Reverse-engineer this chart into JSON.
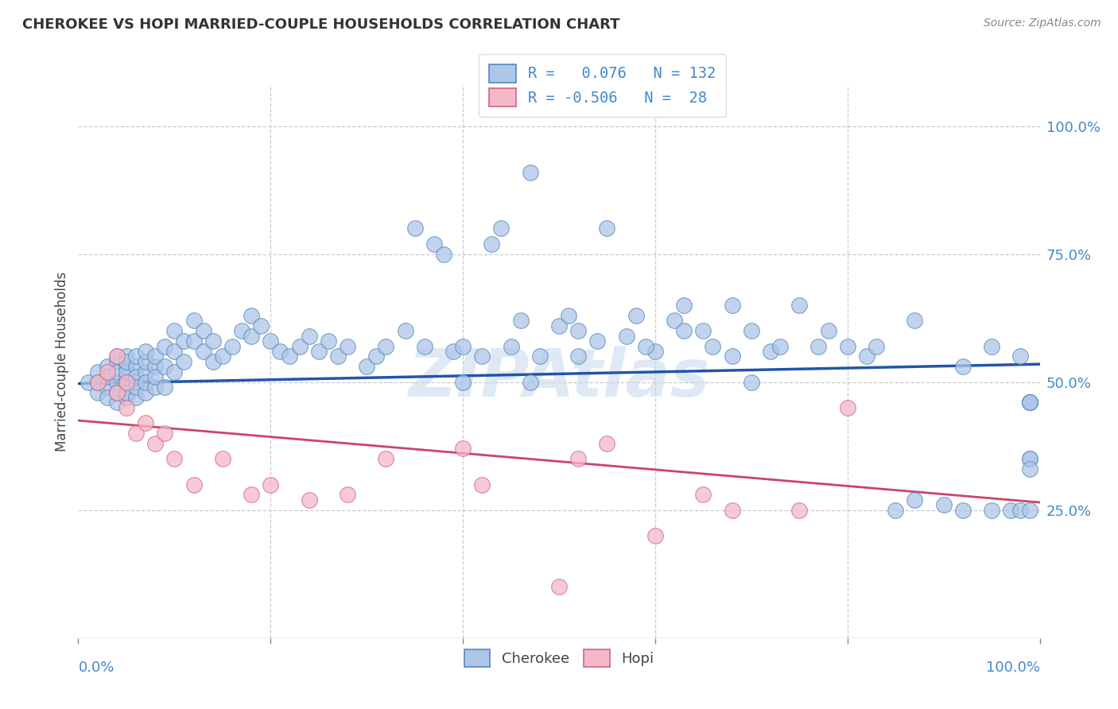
{
  "title": "CHEROKEE VS HOPI MARRIED-COUPLE HOUSEHOLDS CORRELATION CHART",
  "source": "Source: ZipAtlas.com",
  "ylabel": "Married-couple Households",
  "ytick_labels": [
    "100.0%",
    "75.0%",
    "50.0%",
    "25.0%"
  ],
  "ytick_values": [
    1.0,
    0.75,
    0.5,
    0.25
  ],
  "watermark": "ZIPAtlas",
  "legend_line1": "R =   0.076   N = 132",
  "legend_line2": "R = -0.506   N =  28",
  "cherokee_color": "#aec6e8",
  "cherokee_edge_color": "#5588bb",
  "cherokee_line_color": "#2255aa",
  "hopi_color": "#f5b8c8",
  "hopi_edge_color": "#cc6688",
  "hopi_line_color": "#cc4466",
  "legend_text_color": "#4488cc",
  "cherokee_R": 0.076,
  "hopi_R": -0.506,
  "cherokee_N": 132,
  "hopi_N": 28,
  "cherokee_x": [
    0.01,
    0.02,
    0.02,
    0.02,
    0.03,
    0.03,
    0.03,
    0.03,
    0.04,
    0.04,
    0.04,
    0.04,
    0.04,
    0.04,
    0.05,
    0.05,
    0.05,
    0.05,
    0.05,
    0.05,
    0.05,
    0.05,
    0.05,
    0.06,
    0.06,
    0.06,
    0.06,
    0.06,
    0.06,
    0.07,
    0.07,
    0.07,
    0.07,
    0.07,
    0.08,
    0.08,
    0.08,
    0.08,
    0.09,
    0.09,
    0.09,
    0.1,
    0.1,
    0.1,
    0.11,
    0.11,
    0.12,
    0.12,
    0.13,
    0.13,
    0.14,
    0.14,
    0.15,
    0.16,
    0.17,
    0.18,
    0.18,
    0.19,
    0.2,
    0.21,
    0.22,
    0.23,
    0.24,
    0.25,
    0.26,
    0.27,
    0.28,
    0.3,
    0.31,
    0.32,
    0.34,
    0.35,
    0.36,
    0.37,
    0.38,
    0.39,
    0.4,
    0.42,
    0.43,
    0.44,
    0.45,
    0.46,
    0.47,
    0.48,
    0.5,
    0.51,
    0.52,
    0.54,
    0.55,
    0.57,
    0.58,
    0.6,
    0.62,
    0.63,
    0.65,
    0.66,
    0.68,
    0.7,
    0.72,
    0.75,
    0.77,
    0.8,
    0.82,
    0.85,
    0.87,
    0.9,
    0.92,
    0.95,
    0.97,
    0.98,
    0.99,
    0.99,
    0.4,
    0.47,
    0.52,
    0.59,
    0.63,
    0.68,
    0.7,
    0.73,
    0.78,
    0.83,
    0.87,
    0.92,
    0.95,
    0.98,
    0.99,
    0.99,
    0.99,
    0.99,
    0.99,
    0.99
  ],
  "cherokee_y": [
    0.5,
    0.52,
    0.48,
    0.5,
    0.53,
    0.49,
    0.51,
    0.47,
    0.54,
    0.5,
    0.46,
    0.52,
    0.48,
    0.55,
    0.51,
    0.49,
    0.53,
    0.47,
    0.55,
    0.5,
    0.52,
    0.48,
    0.54,
    0.5,
    0.53,
    0.47,
    0.51,
    0.55,
    0.49,
    0.52,
    0.48,
    0.54,
    0.5,
    0.56,
    0.53,
    0.49,
    0.55,
    0.51,
    0.57,
    0.53,
    0.49,
    0.6,
    0.56,
    0.52,
    0.58,
    0.54,
    0.62,
    0.58,
    0.6,
    0.56,
    0.58,
    0.54,
    0.55,
    0.57,
    0.6,
    0.63,
    0.59,
    0.61,
    0.58,
    0.56,
    0.55,
    0.57,
    0.59,
    0.56,
    0.58,
    0.55,
    0.57,
    0.53,
    0.55,
    0.57,
    0.6,
    0.8,
    0.57,
    0.77,
    0.75,
    0.56,
    0.57,
    0.55,
    0.77,
    0.8,
    0.57,
    0.62,
    0.91,
    0.55,
    0.61,
    0.63,
    0.55,
    0.58,
    0.8,
    0.59,
    0.63,
    0.56,
    0.62,
    0.65,
    0.6,
    0.57,
    0.65,
    0.6,
    0.56,
    0.65,
    0.57,
    0.57,
    0.55,
    0.25,
    0.27,
    0.26,
    0.25,
    0.25,
    0.25,
    0.25,
    0.46,
    0.46,
    0.5,
    0.5,
    0.6,
    0.57,
    0.6,
    0.55,
    0.5,
    0.57,
    0.6,
    0.57,
    0.62,
    0.53,
    0.57,
    0.55,
    0.46,
    0.46,
    0.35,
    0.35,
    0.33,
    0.25
  ],
  "hopi_x": [
    0.02,
    0.03,
    0.04,
    0.04,
    0.05,
    0.05,
    0.06,
    0.07,
    0.08,
    0.09,
    0.1,
    0.12,
    0.15,
    0.18,
    0.2,
    0.24,
    0.28,
    0.32,
    0.4,
    0.42,
    0.5,
    0.52,
    0.55,
    0.6,
    0.65,
    0.68,
    0.75,
    0.8
  ],
  "hopi_y": [
    0.5,
    0.52,
    0.48,
    0.55,
    0.45,
    0.5,
    0.4,
    0.42,
    0.38,
    0.4,
    0.35,
    0.3,
    0.35,
    0.28,
    0.3,
    0.27,
    0.28,
    0.35,
    0.37,
    0.3,
    0.1,
    0.35,
    0.38,
    0.2,
    0.28,
    0.25,
    0.25,
    0.45
  ]
}
